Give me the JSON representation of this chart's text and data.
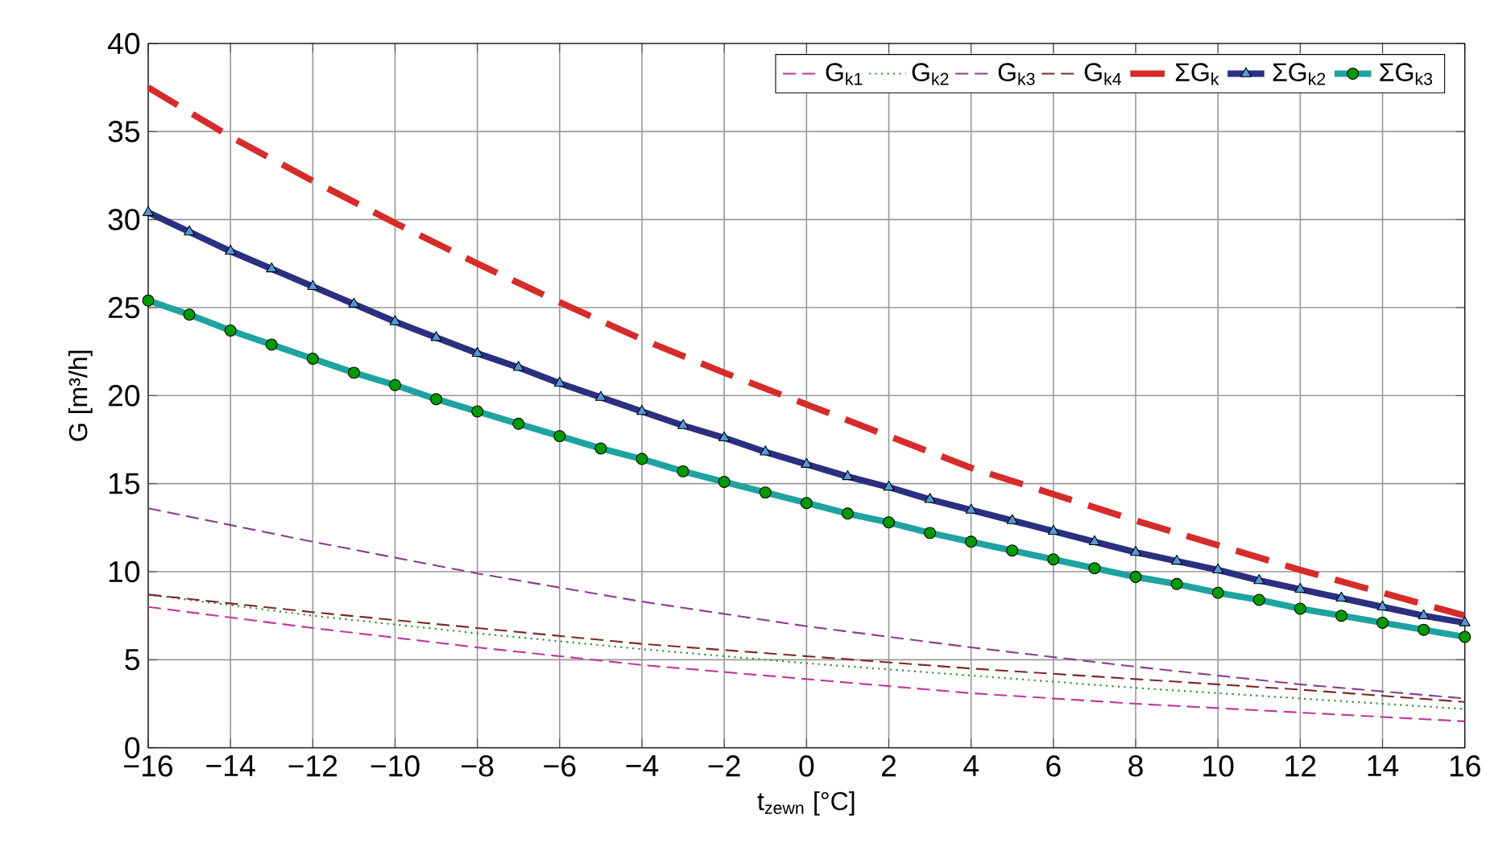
{
  "chart_data": {
    "type": "line",
    "xlabel": "t$_{zewn}$ [°C]",
    "ylabel": "G  [m³/h]",
    "xlim": [
      -16,
      16
    ],
    "ylim": [
      0,
      40
    ],
    "xticks": [
      {
        "value": -16,
        "label": "−16"
      },
      {
        "value": -14,
        "label": "−14"
      },
      {
        "value": -12,
        "label": "−12"
      },
      {
        "value": -10,
        "label": "−10"
      },
      {
        "value": -8,
        "label": "−8"
      },
      {
        "value": -6,
        "label": "−6"
      },
      {
        "value": -4,
        "label": "−4"
      },
      {
        "value": -2,
        "label": "−2"
      },
      0,
      2,
      4,
      6,
      8,
      10,
      12,
      14,
      16
    ],
    "yticks": [
      0,
      5,
      10,
      15,
      20,
      25,
      30,
      35,
      40
    ],
    "grid": true,
    "legend": "top right",
    "series": [
      {
        "name": "G$_{k1}$",
        "color": "#c0399a",
        "line_style": "dashed",
        "marker": "none",
        "x": [
          -16,
          -12,
          -8,
          -4,
          0,
          4,
          8,
          12,
          16
        ],
        "values": [
          8.0,
          6.8,
          5.7,
          4.7,
          3.9,
          3.1,
          2.5,
          2.0,
          1.5
        ]
      },
      {
        "name": "G$_{k2}$",
        "color": "#2e8b3a",
        "line_style": "dotted",
        "marker": "none",
        "x": [
          -16,
          -12,
          -8,
          -4,
          0,
          4,
          8,
          12,
          16
        ],
        "values": [
          8.7,
          7.5,
          6.5,
          5.6,
          4.8,
          4.1,
          3.4,
          2.8,
          2.2
        ]
      },
      {
        "name": "G$_{k3}$",
        "color": "#8a3f8a",
        "line_style": "dashed",
        "marker": "none",
        "x": [
          -16,
          -12,
          -8,
          -4,
          0,
          4,
          8,
          12,
          16
        ],
        "values": [
          13.6,
          11.7,
          9.9,
          8.3,
          6.9,
          5.7,
          4.6,
          3.6,
          2.8
        ]
      },
      {
        "name": "G$_{k4}$",
        "color": "#7a2a2a",
        "line_style": "dashed",
        "marker": "none",
        "x": [
          -16,
          -12,
          -8,
          -4,
          0,
          4,
          8,
          12,
          16
        ],
        "values": [
          8.7,
          7.7,
          6.8,
          5.9,
          5.2,
          4.5,
          3.9,
          3.3,
          2.6
        ]
      },
      {
        "name": "ΣG$_{k}$",
        "color": "#d62b2b",
        "line_style": "dashed",
        "marker": "none",
        "x": [
          -16,
          -14,
          -12,
          -10,
          -8,
          -6,
          -4,
          -2,
          0,
          2,
          4,
          6,
          8,
          10,
          12,
          14,
          16
        ],
        "values": [
          37.5,
          34.7,
          32.2,
          29.8,
          27.5,
          25.3,
          23.2,
          21.3,
          19.5,
          17.7,
          15.9,
          14.4,
          12.9,
          11.5,
          10.1,
          8.8,
          7.5
        ]
      },
      {
        "name": "ΣG$_{k2}$",
        "color": "#2b2f80",
        "line_style": "solid",
        "marker": "triangle",
        "x": [
          -16,
          -15,
          -14,
          -13,
          -12,
          -11,
          -10,
          -9,
          -8,
          -7,
          -6,
          -5,
          -4,
          -3,
          -2,
          -1,
          0,
          1,
          2,
          3,
          4,
          5,
          6,
          7,
          8,
          9,
          10,
          11,
          12,
          13,
          14,
          15,
          16
        ],
        "values": [
          30.4,
          29.3,
          28.2,
          27.2,
          26.2,
          25.2,
          24.2,
          23.3,
          22.4,
          21.6,
          20.7,
          19.9,
          19.1,
          18.3,
          17.6,
          16.8,
          16.1,
          15.4,
          14.8,
          14.1,
          13.5,
          12.9,
          12.3,
          11.7,
          11.1,
          10.6,
          10.1,
          9.5,
          9.0,
          8.5,
          8.0,
          7.5,
          7.1
        ]
      },
      {
        "name": "ΣG$_{k3}$",
        "color": "#1fa3a0",
        "line_style": "solid",
        "marker": "circle",
        "x": [
          -16,
          -15,
          -14,
          -13,
          -12,
          -11,
          -10,
          -9,
          -8,
          -7,
          -6,
          -5,
          -4,
          -3,
          -2,
          -1,
          0,
          1,
          2,
          3,
          4,
          5,
          6,
          7,
          8,
          9,
          10,
          11,
          12,
          13,
          14,
          15,
          16
        ],
        "values": [
          25.4,
          24.6,
          23.7,
          22.9,
          22.1,
          21.3,
          20.6,
          19.8,
          19.1,
          18.4,
          17.7,
          17.0,
          16.4,
          15.7,
          15.1,
          14.5,
          13.9,
          13.3,
          12.8,
          12.2,
          11.7,
          11.2,
          10.7,
          10.2,
          9.7,
          9.3,
          8.8,
          8.4,
          7.9,
          7.5,
          7.1,
          6.7,
          6.3
        ]
      }
    ]
  }
}
